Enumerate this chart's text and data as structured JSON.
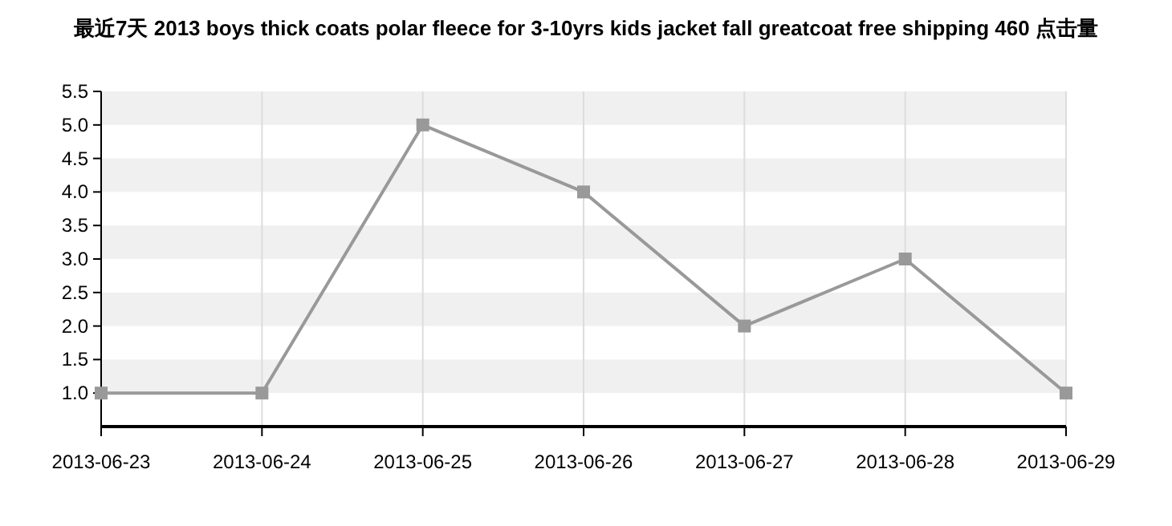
{
  "chart_data": {
    "type": "line",
    "title": "最近7天 2013 boys thick coats polar fleece for 3-10yrs kids jacket fall greatcoat free shipping 460 点击量",
    "categories": [
      "2013-06-23",
      "2013-06-24",
      "2013-06-25",
      "2013-06-26",
      "2013-06-27",
      "2013-06-28",
      "2013-06-29"
    ],
    "series": [
      {
        "color": "#999999",
        "values": [
          1,
          1,
          5,
          4,
          2,
          3,
          1
        ]
      }
    ],
    "ylim": [
      0.5,
      5.5
    ],
    "yticks": [
      {
        "value": 1,
        "label": "1.0"
      },
      {
        "value": 1.5,
        "label": "1.5"
      },
      {
        "value": 2,
        "label": "2.0"
      },
      {
        "value": 2.5,
        "label": "2.5"
      },
      {
        "value": 3,
        "label": "3.0"
      },
      {
        "value": 3.5,
        "label": "3.5"
      },
      {
        "value": 4,
        "label": "4.0"
      },
      {
        "value": 4.5,
        "label": "4.5"
      },
      {
        "value": 5,
        "label": "5.0"
      },
      {
        "value": 5.5,
        "label": "5.5"
      }
    ],
    "grid": true,
    "marker": "square",
    "line_style": "solid"
  }
}
